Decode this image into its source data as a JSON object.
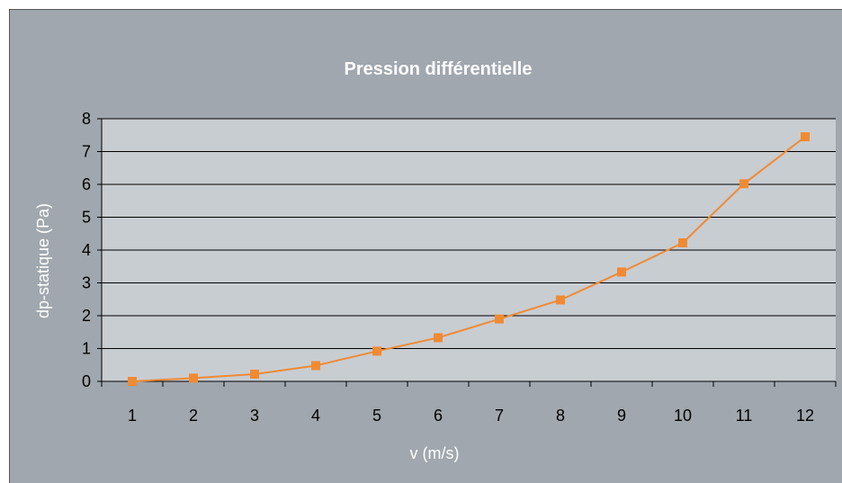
{
  "chart_data": {
    "type": "line",
    "title": "Pression différentielle",
    "xlabel": "v (m/s)",
    "ylabel": "dp-statique (Pa)",
    "categories": [
      "1",
      "2",
      "3",
      "4",
      "5",
      "6",
      "7",
      "8",
      "9",
      "10",
      "11",
      "12"
    ],
    "yticks": [
      "0",
      "1",
      "2",
      "3",
      "4",
      "5",
      "6",
      "7",
      "8"
    ],
    "ylim": [
      0,
      8
    ],
    "grid": true,
    "legend": "none",
    "series": [
      {
        "values": [
          0.0,
          0.1,
          0.22,
          0.48,
          0.92,
          1.33,
          1.9,
          2.48,
          3.33,
          4.22,
          6.02,
          7.45
        ]
      }
    ],
    "colors": {
      "background": "#a0a7ae",
      "plot_area": "#c8cdd2",
      "series": "#f08a33",
      "gridline": "#000000"
    }
  }
}
